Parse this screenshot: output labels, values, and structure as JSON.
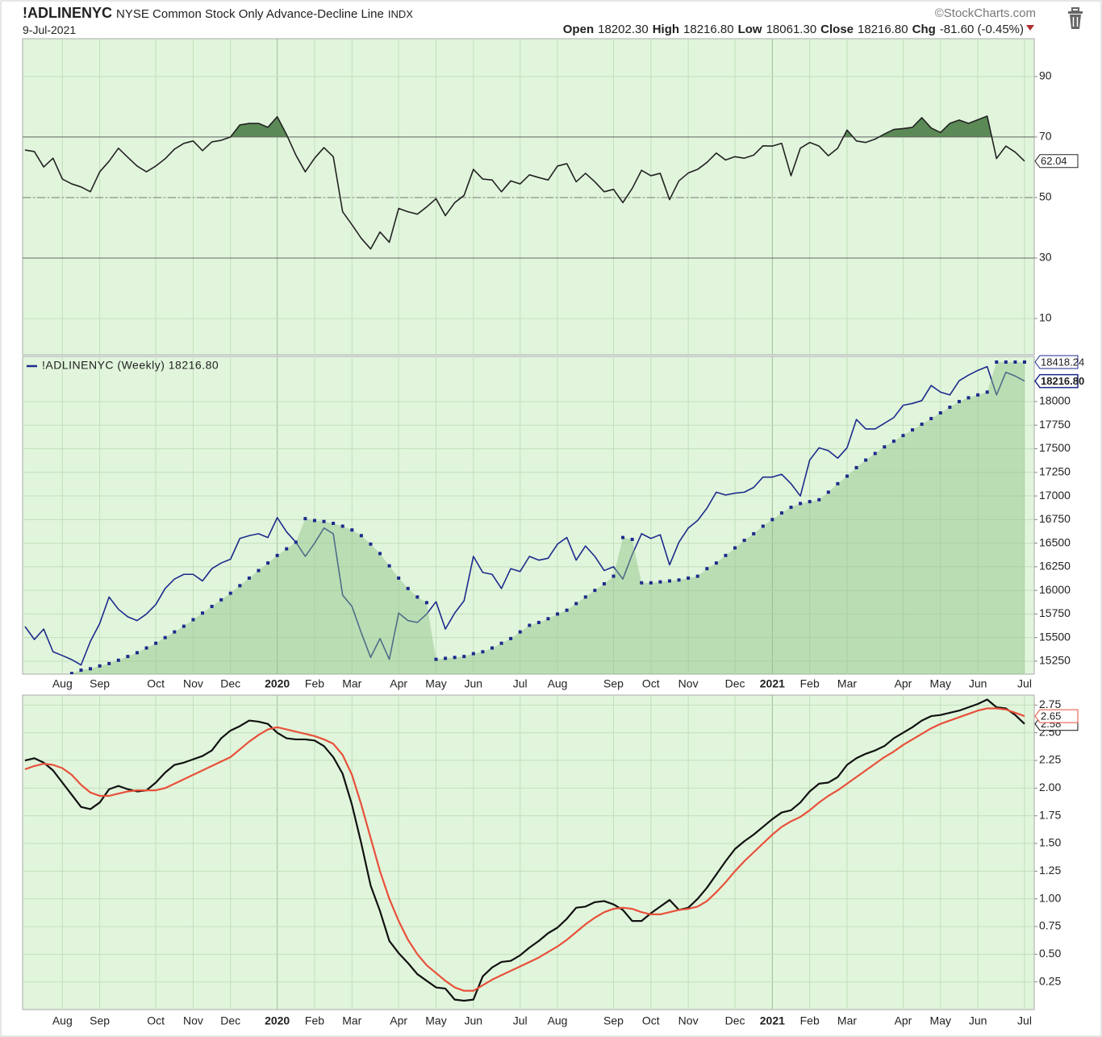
{
  "header": {
    "symbol": "!ADLINENYC",
    "name": "NYSE Common Stock Only Advance-Decline Line",
    "exchange": "INDX",
    "date": "9-Jul-2021",
    "credit": "©StockCharts.com",
    "quote": [
      {
        "label": "Open",
        "value": "18202.30"
      },
      {
        "label": "High",
        "value": "18216.80"
      },
      {
        "label": "Low",
        "value": "18061.30"
      },
      {
        "label": "Close",
        "value": "18216.80"
      },
      {
        "label": "Chg",
        "value": "-81.60 (-0.45%)"
      }
    ]
  },
  "chart_data": [
    {
      "type": "line",
      "ylim": [
        -2,
        102.5
      ],
      "yticks": [
        10,
        30,
        50,
        70,
        90
      ],
      "grid": true,
      "overbought": 70,
      "oversold": 30,
      "centerline": 50,
      "fill_color": "#5b8a57",
      "series": [
        {
          "color": "#222222",
          "last_label": "62.04",
          "values": [
            65.7,
            65.2,
            60.1,
            63,
            56.1,
            54.5,
            53.5,
            51.9,
            58.5,
            62,
            66.3,
            63.3,
            60.4,
            58.5,
            60.4,
            62.8,
            66,
            67.9,
            68.7,
            65.5,
            68.4,
            68.9,
            70,
            74,
            74.5,
            74.5,
            73.2,
            76.7,
            70.8,
            64,
            58.5,
            63,
            66.5,
            63.5,
            45.3,
            41,
            36.5,
            33,
            38.6,
            35.2,
            46.4,
            45.3,
            44.5,
            46.9,
            49.6,
            44,
            48.3,
            50.7,
            59.3,
            56.1,
            55.8,
            51.9,
            55.5,
            54.5,
            57.5,
            56.6,
            55.8,
            60.4,
            61.2,
            55.2,
            58,
            55.2,
            51.9,
            52.7,
            48.3,
            53,
            59,
            57.2,
            58,
            49.3,
            55.5,
            58.1,
            59.3,
            61.6,
            64.7,
            62.4,
            63.5,
            63,
            64,
            67.1,
            67,
            67.9,
            57.2,
            66.3,
            68.2,
            67,
            63.8,
            66.3,
            72.3,
            68.7,
            68.2,
            69.3,
            71,
            72.5,
            72.8,
            73.2,
            76.4,
            73,
            71.5,
            74.5,
            75.6,
            74.5,
            75.7,
            76.9,
            62.9,
            67,
            65,
            62.04
          ]
        }
      ]
    },
    {
      "type": "line",
      "ylim": [
        15113,
        18478
      ],
      "yticks": [
        15250,
        15500,
        15750,
        16000,
        16250,
        16500,
        16750,
        17000,
        17250,
        17500,
        17750,
        18000
      ],
      "grid": true,
      "legend": "top-left",
      "categories": [
        null,
        null,
        null,
        null,
        "Aug",
        null,
        null,
        null,
        "Sep",
        null,
        null,
        null,
        null,
        null,
        "Oct",
        null,
        null,
        null,
        "Nov",
        null,
        null,
        null,
        "Dec",
        null,
        null,
        null,
        null,
        "2020",
        null,
        null,
        null,
        "Feb",
        null,
        null,
        null,
        "Mar",
        null,
        null,
        null,
        null,
        "Apr",
        null,
        null,
        null,
        "May",
        null,
        null,
        null,
        "Jun",
        null,
        null,
        null,
        null,
        "Jul",
        null,
        null,
        null,
        "Aug",
        null,
        null,
        null,
        null,
        null,
        "Sep",
        null,
        null,
        null,
        "Oct",
        null,
        null,
        null,
        "Nov",
        null,
        null,
        null,
        null,
        "Dec",
        null,
        null,
        null,
        "2021",
        null,
        null,
        null,
        "Feb",
        null,
        null,
        null,
        "Mar",
        null,
        null,
        null,
        null,
        null,
        "Apr",
        null,
        null,
        null,
        "May",
        null,
        null,
        null,
        "Jun",
        null,
        null,
        null,
        null,
        "Jul"
      ],
      "series": [
        {
          "name": "!ADLINENYC (Weekly) 18216.80",
          "color": "#1c2a8c",
          "last_label": "18216.80",
          "values": [
            15617,
            15480,
            15590,
            15350,
            15310,
            15267,
            15210,
            15460,
            15650,
            15930,
            15800,
            15720,
            15680,
            15750,
            15850,
            16020,
            16120,
            16170,
            16170,
            16100,
            16230,
            16290,
            16330,
            16550,
            16580,
            16600,
            16560,
            16770,
            16620,
            16510,
            16360,
            16500,
            16660,
            16600,
            15950,
            15830,
            15550,
            15290,
            15490,
            15270,
            15760,
            15680,
            15660,
            15750,
            15880,
            15590,
            15760,
            15890,
            16360,
            16190,
            16170,
            16020,
            16230,
            16200,
            16360,
            16320,
            16340,
            16490,
            16560,
            16320,
            16470,
            16360,
            16210,
            16250,
            16120,
            16380,
            16600,
            16550,
            16590,
            16270,
            16510,
            16660,
            16740,
            16870,
            17040,
            17010,
            17030,
            17040,
            17090,
            17200,
            17200,
            17230,
            17130,
            17000,
            17380,
            17510,
            17480,
            17400,
            17510,
            17810,
            17710,
            17710,
            17770,
            17830,
            17960,
            17980,
            18010,
            18170,
            18100,
            18070,
            18220,
            18280,
            18330,
            18370,
            18070,
            18310,
            18270,
            18216.8
          ]
        },
        {
          "color": "#1c2a8c",
          "style": "dots",
          "area_color": "#8fc283",
          "last_label": "18418.24",
          "values": [
            null,
            null,
            null,
            null,
            null,
            15120,
            15155,
            15170,
            15200,
            15225,
            15260,
            15300,
            15340,
            15390,
            15440,
            15500,
            15560,
            15620,
            15690,
            15760,
            15830,
            15900,
            15970,
            16050,
            16130,
            16210,
            16290,
            16370,
            16440,
            16510,
            16760,
            16740,
            16730,
            16710,
            16680,
            16640,
            16580,
            16490,
            16390,
            16260,
            16130,
            16020,
            15930,
            15870,
            15270,
            15280,
            15290,
            15300,
            15330,
            15350,
            15390,
            15440,
            15490,
            15560,
            15630,
            15660,
            15700,
            15750,
            15790,
            15860,
            15930,
            16000,
            16070,
            16150,
            16560,
            16540,
            16080,
            16080,
            16090,
            16100,
            16110,
            16130,
            16150,
            16230,
            16290,
            16370,
            16450,
            16530,
            16600,
            16680,
            16750,
            16820,
            16880,
            16920,
            16940,
            16960,
            17040,
            17130,
            17210,
            17300,
            17380,
            17450,
            17520,
            17580,
            17640,
            17700,
            17760,
            17820,
            17880,
            17940,
            18000,
            18040,
            18070,
            18100,
            18418.24,
            18418.24,
            18418.24,
            18418.24
          ]
        }
      ]
    },
    {
      "type": "line",
      "ylim": [
        0,
        2.84
      ],
      "grid": true,
      "yticks": [
        0.25,
        {
          "value": 0.5,
          "label": "0.50"
        },
        0.75,
        {
          "value": 1,
          "label": "1.00"
        },
        1.25,
        {
          "value": 1.5,
          "label": "1.50"
        },
        1.75,
        {
          "value": 2,
          "label": "2.00"
        },
        2.25,
        {
          "value": 2.5,
          "label": "2.50"
        },
        2.75
      ],
      "categories": [
        null,
        null,
        null,
        null,
        "Aug",
        null,
        null,
        null,
        "Sep",
        null,
        null,
        null,
        null,
        null,
        "Oct",
        null,
        null,
        null,
        "Nov",
        null,
        null,
        null,
        "Dec",
        null,
        null,
        null,
        null,
        "2020",
        null,
        null,
        null,
        "Feb",
        null,
        null,
        null,
        "Mar",
        null,
        null,
        null,
        null,
        "Apr",
        null,
        null,
        null,
        "May",
        null,
        null,
        null,
        "Jun",
        null,
        null,
        null,
        null,
        "Jul",
        null,
        null,
        null,
        "Aug",
        null,
        null,
        null,
        null,
        null,
        "Sep",
        null,
        null,
        null,
        "Oct",
        null,
        null,
        null,
        "Nov",
        null,
        null,
        null,
        null,
        "Dec",
        null,
        null,
        null,
        "2021",
        null,
        null,
        null,
        "Feb",
        null,
        null,
        null,
        "Mar",
        null,
        null,
        null,
        null,
        null,
        "Apr",
        null,
        null,
        null,
        "May",
        null,
        null,
        null,
        "Jun",
        null,
        null,
        null,
        null,
        "Jul"
      ],
      "series": [
        {
          "color": "#111111",
          "last_label": "2.58",
          "values": [
            2.25,
            2.27,
            2.23,
            2.16,
            2.05,
            1.94,
            1.83,
            1.81,
            1.87,
            1.99,
            2.02,
            1.99,
            1.97,
            1.98,
            2.05,
            2.14,
            2.21,
            2.23,
            2.26,
            2.29,
            2.34,
            2.45,
            2.52,
            2.56,
            2.61,
            2.6,
            2.58,
            2.5,
            2.45,
            2.44,
            2.44,
            2.43,
            2.38,
            2.28,
            2.13,
            1.85,
            1.5,
            1.12,
            0.89,
            0.62,
            0.51,
            0.42,
            0.32,
            0.26,
            0.2,
            0.19,
            0.09,
            0.08,
            0.09,
            0.3,
            0.38,
            0.43,
            0.44,
            0.49,
            0.56,
            0.62,
            0.69,
            0.74,
            0.82,
            0.92,
            0.93,
            0.97,
            0.98,
            0.95,
            0.9,
            0.8,
            0.8,
            0.87,
            0.93,
            0.99,
            0.9,
            0.92,
            1.0,
            1.1,
            1.22,
            1.34,
            1.45,
            1.52,
            1.58,
            1.65,
            1.72,
            1.78,
            1.8,
            1.87,
            1.97,
            2.04,
            2.05,
            2.1,
            2.21,
            2.27,
            2.31,
            2.34,
            2.38,
            2.45,
            2.5,
            2.55,
            2.61,
            2.65,
            2.66,
            2.68,
            2.7,
            2.73,
            2.76,
            2.8,
            2.73,
            2.72,
            2.66,
            2.58
          ]
        },
        {
          "color": "#e8503a",
          "last_label": "2.65",
          "values": [
            2.17,
            2.2,
            2.22,
            2.21,
            2.18,
            2.12,
            2.03,
            1.96,
            1.93,
            1.93,
            1.95,
            1.97,
            1.98,
            1.98,
            1.98,
            2.0,
            2.04,
            2.08,
            2.12,
            2.16,
            2.2,
            2.24,
            2.28,
            2.35,
            2.42,
            2.48,
            2.53,
            2.55,
            2.53,
            2.51,
            2.49,
            2.47,
            2.44,
            2.4,
            2.3,
            2.12,
            1.85,
            1.55,
            1.25,
            1.0,
            0.8,
            0.63,
            0.5,
            0.4,
            0.33,
            0.26,
            0.2,
            0.17,
            0.17,
            0.22,
            0.27,
            0.31,
            0.35,
            0.39,
            0.43,
            0.47,
            0.52,
            0.57,
            0.63,
            0.7,
            0.77,
            0.83,
            0.88,
            0.91,
            0.92,
            0.91,
            0.88,
            0.86,
            0.86,
            0.88,
            0.9,
            0.91,
            0.93,
            0.98,
            1.06,
            1.15,
            1.25,
            1.34,
            1.42,
            1.5,
            1.58,
            1.65,
            1.7,
            1.74,
            1.8,
            1.87,
            1.93,
            1.98,
            2.04,
            2.1,
            2.16,
            2.22,
            2.28,
            2.33,
            2.39,
            2.44,
            2.49,
            2.54,
            2.58,
            2.61,
            2.64,
            2.67,
            2.7,
            2.72,
            2.72,
            2.71,
            2.68,
            2.65
          ]
        }
      ]
    }
  ]
}
